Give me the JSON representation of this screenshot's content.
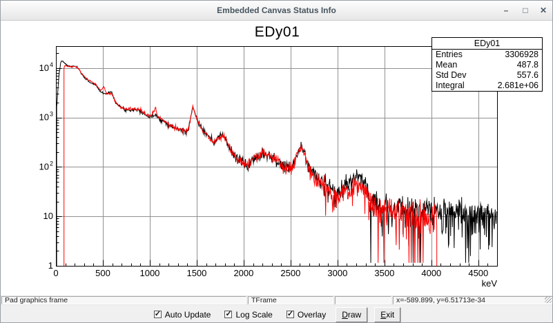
{
  "window": {
    "title": "Embedded Canvas Status Info",
    "minimize_icon": "–",
    "maximize_icon": "□",
    "close_icon": "✕"
  },
  "chart_data": {
    "type": "histogram-overlay",
    "title": "EDy01",
    "xlabel": "keV",
    "xlim": [
      0,
      4700
    ],
    "ylog": true,
    "ylim": [
      1,
      27700
    ],
    "grid": true,
    "xticks": [
      0,
      500,
      1000,
      1500,
      2000,
      2500,
      3000,
      3500,
      4000,
      4500
    ],
    "x_minor_step": 100,
    "yticks": [
      {
        "v": 1,
        "t": "1"
      },
      {
        "v": 10,
        "t": "10"
      },
      {
        "v": 100,
        "t": "10",
        "e": "2"
      },
      {
        "v": 1000,
        "t": "10",
        "e": "3"
      },
      {
        "v": 10000,
        "t": "10",
        "e": "4"
      }
    ],
    "colors": {
      "grid": "#909090",
      "frame": "#000000"
    },
    "bin_width": 4.7,
    "noise_scale": 1.5,
    "stats_box": {
      "title": "EDy01",
      "rows": [
        {
          "label": "Entries",
          "value": "3306928"
        },
        {
          "label": "Mean",
          "value": "487.8"
        },
        {
          "label": "Std Dev",
          "value": "557.6"
        },
        {
          "label": "Integral",
          "value": "2.681e+06"
        }
      ]
    },
    "series": [
      {
        "name": "EDy01-black",
        "color": "#000000",
        "seed": 7,
        "range": [
          8,
          4700
        ],
        "drop_at_end": false,
        "points": [
          [
            8,
            1500
          ],
          [
            20,
            3500
          ],
          [
            35,
            8000
          ],
          [
            50,
            12500
          ],
          [
            62,
            14000
          ],
          [
            80,
            13200
          ],
          [
            100,
            12200
          ],
          [
            130,
            11000
          ],
          [
            160,
            10700
          ],
          [
            190,
            11000
          ],
          [
            225,
            10400
          ],
          [
            250,
            9200
          ],
          [
            265,
            8000
          ],
          [
            290,
            6900
          ],
          [
            315,
            6100
          ],
          [
            340,
            5600
          ],
          [
            365,
            5100
          ],
          [
            395,
            4800
          ],
          [
            425,
            4600
          ],
          [
            455,
            3700
          ],
          [
            480,
            3250
          ],
          [
            511,
            3100
          ],
          [
            540,
            3050
          ],
          [
            565,
            3250
          ],
          [
            590,
            3300
          ],
          [
            615,
            2600
          ],
          [
            640,
            2000
          ],
          [
            665,
            1750
          ],
          [
            700,
            1550
          ],
          [
            740,
            1430
          ],
          [
            790,
            1420
          ],
          [
            840,
            1460
          ],
          [
            875,
            1430
          ],
          [
            910,
            1330
          ],
          [
            950,
            1150
          ],
          [
            1000,
            1000
          ],
          [
            1035,
            1060
          ],
          [
            1063,
            1180
          ],
          [
            1090,
            980
          ],
          [
            1130,
            870
          ],
          [
            1170,
            800
          ],
          [
            1230,
            650
          ],
          [
            1290,
            585
          ],
          [
            1350,
            545
          ],
          [
            1385,
            520
          ],
          [
            1410,
            580
          ],
          [
            1435,
            950
          ],
          [
            1458,
            1650
          ],
          [
            1480,
            1250
          ],
          [
            1505,
            900
          ],
          [
            1535,
            700
          ],
          [
            1565,
            550
          ],
          [
            1600,
            470
          ],
          [
            1640,
            370
          ],
          [
            1685,
            310
          ],
          [
            1725,
            380
          ],
          [
            1765,
            450
          ],
          [
            1800,
            400
          ],
          [
            1835,
            280
          ],
          [
            1870,
            205
          ],
          [
            1905,
            165
          ],
          [
            1950,
            143
          ],
          [
            2000,
            120
          ],
          [
            2045,
            105
          ],
          [
            2090,
            138
          ],
          [
            2140,
            163
          ],
          [
            2204,
            190
          ],
          [
            2260,
            180
          ],
          [
            2320,
            150
          ],
          [
            2380,
            120
          ],
          [
            2440,
            97
          ],
          [
            2490,
            92
          ],
          [
            2530,
            110
          ],
          [
            2575,
            185
          ],
          [
            2614,
            280
          ],
          [
            2648,
            190
          ],
          [
            2680,
            120
          ],
          [
            2715,
            90
          ],
          [
            2760,
            68
          ],
          [
            2820,
            55
          ],
          [
            2890,
            42
          ],
          [
            2950,
            33
          ],
          [
            3000,
            28
          ],
          [
            3060,
            36
          ],
          [
            3110,
            48
          ],
          [
            3165,
            58
          ],
          [
            3215,
            60
          ],
          [
            3265,
            53
          ],
          [
            3315,
            39
          ],
          [
            3365,
            26
          ],
          [
            3415,
            19
          ],
          [
            3470,
            16
          ],
          [
            3560,
            15
          ],
          [
            3660,
            14
          ],
          [
            3770,
            13
          ],
          [
            3880,
            12
          ],
          [
            4000,
            11.5
          ],
          [
            4150,
            10.8
          ],
          [
            4350,
            10.2
          ],
          [
            4550,
            10
          ],
          [
            4700,
            10
          ]
        ]
      },
      {
        "name": "EDy01-red-overlay",
        "color": "#ff0000",
        "seed": 13,
        "range": [
          86,
          4058
        ],
        "drop_at_end": true,
        "points": [
          [
            86,
            10000
          ],
          [
            100,
            11200
          ],
          [
            130,
            10800
          ],
          [
            160,
            10500
          ],
          [
            190,
            10800
          ],
          [
            225,
            10300
          ],
          [
            250,
            9300
          ],
          [
            265,
            8200
          ],
          [
            290,
            7100
          ],
          [
            315,
            6400
          ],
          [
            340,
            5800
          ],
          [
            365,
            5400
          ],
          [
            395,
            5000
          ],
          [
            425,
            4800
          ],
          [
            455,
            3900
          ],
          [
            480,
            3500
          ],
          [
            497,
            3900
          ],
          [
            511,
            4200
          ],
          [
            527,
            3400
          ],
          [
            550,
            2950
          ],
          [
            575,
            3100
          ],
          [
            590,
            3150
          ],
          [
            615,
            2500
          ],
          [
            640,
            1950
          ],
          [
            665,
            1760
          ],
          [
            700,
            1570
          ],
          [
            740,
            1460
          ],
          [
            790,
            1460
          ],
          [
            840,
            1520
          ],
          [
            875,
            1480
          ],
          [
            910,
            1390
          ],
          [
            950,
            1180
          ],
          [
            1000,
            1060
          ],
          [
            1035,
            1280
          ],
          [
            1063,
            1550
          ],
          [
            1090,
            1020
          ],
          [
            1130,
            880
          ],
          [
            1170,
            810
          ],
          [
            1230,
            655
          ],
          [
            1290,
            590
          ],
          [
            1350,
            550
          ],
          [
            1385,
            525
          ],
          [
            1410,
            590
          ],
          [
            1435,
            970
          ],
          [
            1458,
            1660
          ],
          [
            1480,
            1230
          ],
          [
            1505,
            890
          ],
          [
            1535,
            690
          ],
          [
            1565,
            545
          ],
          [
            1600,
            462
          ],
          [
            1640,
            365
          ],
          [
            1685,
            305
          ],
          [
            1725,
            375
          ],
          [
            1765,
            445
          ],
          [
            1800,
            395
          ],
          [
            1835,
            275
          ],
          [
            1870,
            200
          ],
          [
            1905,
            162
          ],
          [
            1950,
            140
          ],
          [
            2000,
            118
          ],
          [
            2045,
            103
          ],
          [
            2090,
            135
          ],
          [
            2140,
            160
          ],
          [
            2204,
            187
          ],
          [
            2260,
            177
          ],
          [
            2320,
            147
          ],
          [
            2380,
            118
          ],
          [
            2440,
            95
          ],
          [
            2490,
            90
          ],
          [
            2530,
            107
          ],
          [
            2575,
            180
          ],
          [
            2614,
            272
          ],
          [
            2648,
            185
          ],
          [
            2680,
            115
          ],
          [
            2715,
            86
          ],
          [
            2760,
            63
          ],
          [
            2820,
            50
          ],
          [
            2890,
            36
          ],
          [
            2950,
            26
          ],
          [
            3000,
            21
          ],
          [
            3060,
            26
          ],
          [
            3110,
            33
          ],
          [
            3165,
            38
          ],
          [
            3215,
            40
          ],
          [
            3265,
            35
          ],
          [
            3315,
            27
          ],
          [
            3365,
            19
          ],
          [
            3415,
            14.5
          ],
          [
            3470,
            13
          ],
          [
            3560,
            12
          ],
          [
            3660,
            11
          ],
          [
            3770,
            10.3
          ],
          [
            3880,
            9.8
          ],
          [
            4000,
            9.3
          ],
          [
            4058,
            9
          ]
        ]
      }
    ]
  },
  "status_bar": {
    "cells": [
      "Pad graphics frame",
      "TFrame",
      "",
      "x=-589.899, y=6.51713e-34"
    ]
  },
  "controls": {
    "check_glyph": "✓",
    "checkboxes": [
      {
        "label": "Auto Update",
        "checked": true
      },
      {
        "label": "Log Scale",
        "checked": true
      },
      {
        "label": "Overlay",
        "checked": true
      }
    ],
    "draw_button": {
      "first": "D",
      "rest": "raw"
    },
    "exit_button": {
      "first": "E",
      "rest": "xit"
    }
  }
}
